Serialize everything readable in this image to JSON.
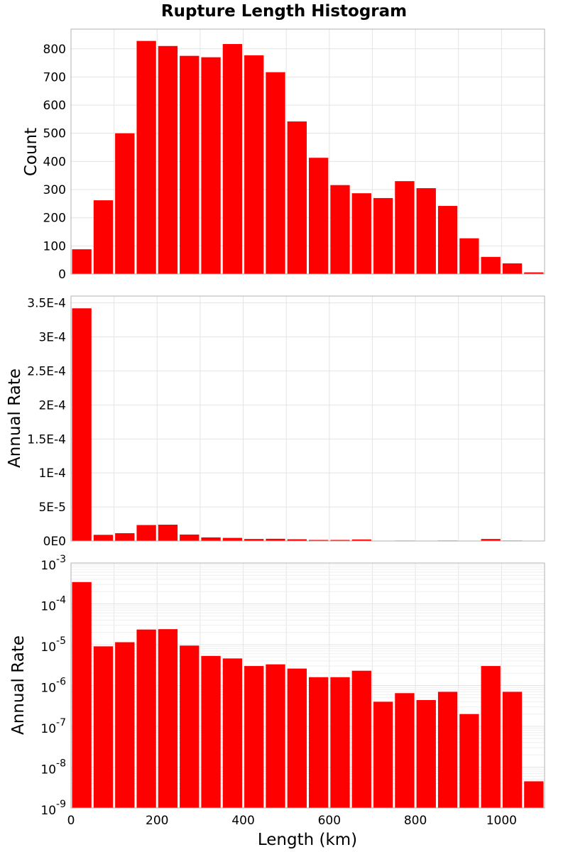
{
  "title": "Rupture Length Histogram",
  "colors": {
    "bar": "#ff0000",
    "frame": "#b0b0b0",
    "grid": "#e4e4e4"
  },
  "chart_data": [
    {
      "type": "bar",
      "panel": "top",
      "title": "Rupture Length Histogram",
      "xlabel": "",
      "ylabel": "Count",
      "xlim": [
        0,
        1100
      ],
      "ylim": [
        0,
        870
      ],
      "bin_width": 50,
      "x": [
        25,
        75,
        125,
        175,
        225,
        275,
        325,
        375,
        425,
        475,
        525,
        575,
        625,
        675,
        725,
        775,
        825,
        875,
        925,
        975,
        1025,
        1075
      ],
      "values": [
        88,
        262,
        500,
        828,
        810,
        775,
        770,
        817,
        777,
        717,
        542,
        413,
        316,
        287,
        270,
        330,
        305,
        242,
        127,
        61,
        38,
        6
      ],
      "yticks": [
        0,
        100,
        200,
        300,
        400,
        500,
        600,
        700,
        800
      ],
      "ytick_labels": [
        "0",
        "100",
        "200",
        "300",
        "400",
        "500",
        "600",
        "700",
        "800"
      ],
      "xticks": [
        0,
        200,
        400,
        600,
        800,
        1000
      ],
      "grid": true
    },
    {
      "type": "bar",
      "panel": "middle",
      "xlabel": "",
      "ylabel": "Annual Rate",
      "xlim": [
        0,
        1100
      ],
      "ylim": [
        0,
        0.00036
      ],
      "bin_width": 50,
      "x": [
        25,
        75,
        125,
        175,
        225,
        275,
        325,
        375,
        425,
        475,
        525,
        575,
        625,
        675,
        725,
        775,
        825,
        875,
        925,
        975,
        1025,
        1075
      ],
      "values": [
        0.000342,
        9.1e-06,
        1.15e-05,
        2.35e-05,
        2.4e-05,
        9.5e-06,
        5.3e-06,
        4.6e-06,
        3e-06,
        3.3e-06,
        2.6e-06,
        1.6e-06,
        1.6e-06,
        2.3e-06,
        4e-07,
        6.5e-07,
        4.4e-07,
        7e-07,
        2e-07,
        3e-06,
        7e-07,
        4.5e-09
      ],
      "yticks": [
        0,
        5e-05,
        0.0001,
        0.00015,
        0.0002,
        0.00025,
        0.0003,
        0.00035
      ],
      "ytick_labels": [
        "0E0",
        "5E-5",
        "1E-4",
        "1.5E-4",
        "2E-4",
        "2.5E-4",
        "3E-4",
        "3.5E-4"
      ],
      "xticks": [
        0,
        200,
        400,
        600,
        800,
        1000
      ],
      "grid": true
    },
    {
      "type": "bar",
      "panel": "bottom",
      "xlabel": "Length (km)",
      "ylabel": "Annual Rate",
      "log_y": true,
      "xlim": [
        0,
        1100
      ],
      "ylim": [
        1e-09,
        0.001
      ],
      "bin_width": 50,
      "x": [
        25,
        75,
        125,
        175,
        225,
        275,
        325,
        375,
        425,
        475,
        525,
        575,
        625,
        675,
        725,
        775,
        825,
        875,
        925,
        975,
        1025,
        1075
      ],
      "values": [
        0.000342,
        9.1e-06,
        1.15e-05,
        2.35e-05,
        2.4e-05,
        9.5e-06,
        5.3e-06,
        4.6e-06,
        3e-06,
        3.3e-06,
        2.6e-06,
        1.6e-06,
        1.6e-06,
        2.3e-06,
        4e-07,
        6.5e-07,
        4.4e-07,
        7e-07,
        2e-07,
        3e-06,
        7e-07,
        4.5e-09
      ],
      "ytick_exponents": [
        "-9",
        "-8",
        "-7",
        "-6",
        "-5",
        "-4",
        "-3"
      ],
      "ytick_base": "10",
      "xticks": [
        0,
        200,
        400,
        600,
        800,
        1000
      ],
      "xtick_labels": [
        "0",
        "200",
        "400",
        "600",
        "800",
        "1000"
      ],
      "grid": true
    }
  ]
}
